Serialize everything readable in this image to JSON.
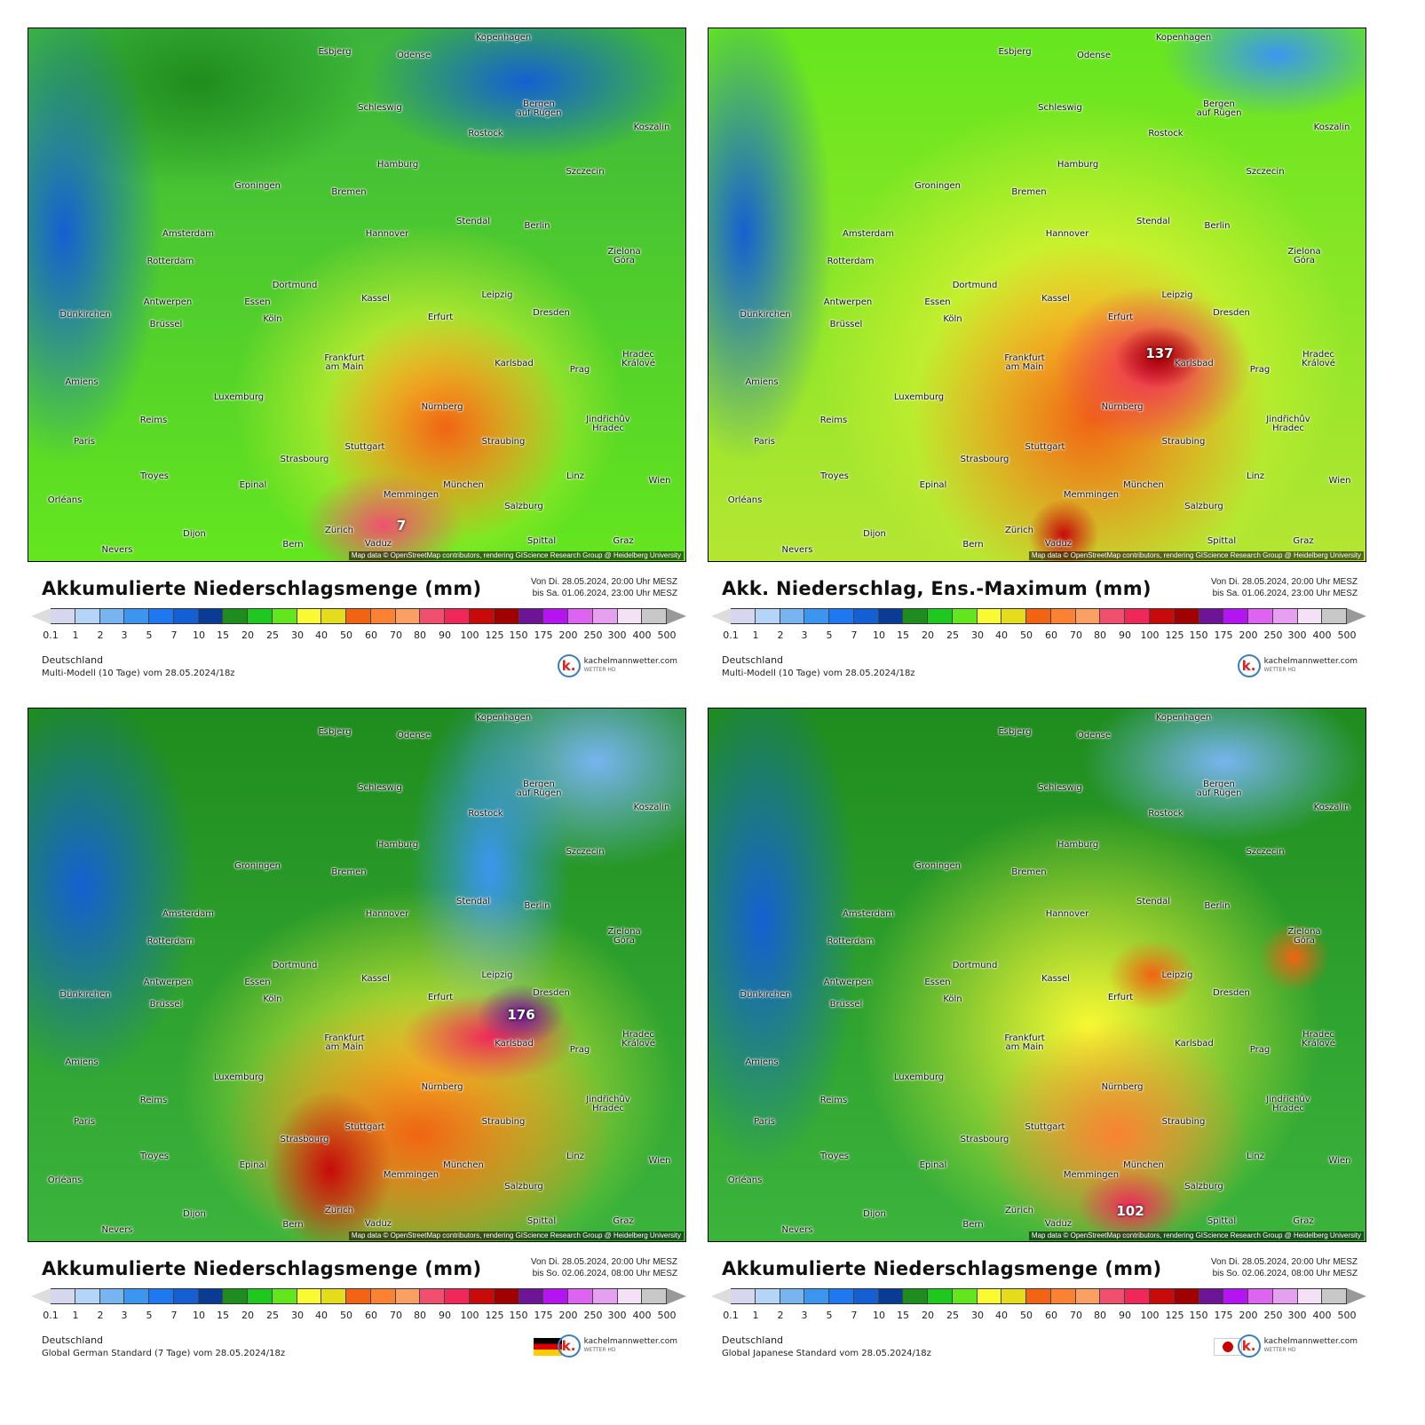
{
  "legend": {
    "ticks": [
      "0.1",
      "1",
      "2",
      "3",
      "5",
      "7",
      "10",
      "15",
      "20",
      "25",
      "30",
      "40",
      "50",
      "60",
      "70",
      "80",
      "90",
      "100",
      "125",
      "150",
      "175",
      "200",
      "250",
      "300",
      "400",
      "500"
    ],
    "colors": [
      "#d6d6ee",
      "#b4d4f8",
      "#78b4f0",
      "#3c96f0",
      "#1e78f0",
      "#1460d2",
      "#0a3c96",
      "#1e8c1e",
      "#1ec81e",
      "#64e61e",
      "#fafa32",
      "#e6dc1e",
      "#f06414",
      "#fa8232",
      "#faa064",
      "#f0506e",
      "#f0285a",
      "#c80a0a",
      "#a00000",
      "#6e1496",
      "#b414f0",
      "#dc64f0",
      "#e6a0f0",
      "#f5e1f5",
      "#c8c8c8"
    ]
  },
  "cities": [
    "Kopenhagen",
    "Esbjerg",
    "Odense",
    "Schleswig",
    "Bergen\nauf Rügen",
    "Rostock",
    "Koszalin",
    "Hamburg",
    "Szczecin",
    "Groningen",
    "Bremen",
    "Amsterdam",
    "Hannover",
    "Stendal",
    "Berlin",
    "Rotterdam",
    "Zielona\nGóra",
    "Dortmund",
    "Leipzig",
    "Antwerpen",
    "Essen",
    "Kassel",
    "Dünkirchen",
    "Köln",
    "Erfurt",
    "Dresden",
    "Brüssel",
    "Frankfurt\nam Main",
    "Karlsbad",
    "Prag",
    "Hradec\nKrálové",
    "Amiens",
    "Luxemburg",
    "Nürnberg",
    "Jindřichův\nHradec",
    "Reims",
    "Paris",
    "Straubing",
    "Stuttgart",
    "Strasbourg",
    "Troyes",
    "München",
    "Linz",
    "Wien",
    "Epinal",
    "Memmingen",
    "Orléans",
    "Salzburg",
    "Zürich",
    "Dijon",
    "Vaduz",
    "Spittal",
    "Bern",
    "Nevers",
    "Graz"
  ],
  "attribution": "Map data © OpenStreetMap contributors, rendering GIScience Research Group @ Heidelberg University",
  "logo": {
    "name": "kachelmannwetter.com",
    "sub": "WETTER HD"
  },
  "panels": [
    {
      "title": "Akkumulierte Niederschlagsmenge (mm)",
      "from": "Von Di. 28.05.2024, 20:00 Uhr MESZ",
      "to": "bis Sa. 01.06.2024, 23:00 Uhr MESZ",
      "region": "Deutschland",
      "model": "Multi-Modell (10 Tage) vom  28.05.2024/18z",
      "peak": "7",
      "flag": ""
    },
    {
      "title": "Akk. Niederschlag, Ens.-Maximum (mm)",
      "from": "Von Di. 28.05.2024, 20:00 Uhr MESZ",
      "to": "bis Sa. 01.06.2024, 23:00 Uhr MESZ",
      "region": "Deutschland",
      "model": "Multi-Modell (10 Tage) vom  28.05.2024/18z",
      "peak": "137",
      "flag": ""
    },
    {
      "title": "Akkumulierte Niederschlagsmenge (mm)",
      "from": "Von Di. 28.05.2024, 20:00 Uhr MESZ",
      "to": "bis So. 02.06.2024, 08:00 Uhr MESZ",
      "region": "Deutschland",
      "model": "Global German Standard (7 Tage) vom  28.05.2024/18z",
      "peak": "176",
      "flag": "germany"
    },
    {
      "title": "Akkumulierte Niederschlagsmenge (mm)",
      "from": "Von Di. 28.05.2024, 20:00 Uhr MESZ",
      "to": "bis So. 02.06.2024, 08:00 Uhr MESZ",
      "region": "Deutschland",
      "model": "Global Japanese Standard vom  28.05.2024/18z",
      "peak": "102",
      "flag": "japan"
    }
  ]
}
